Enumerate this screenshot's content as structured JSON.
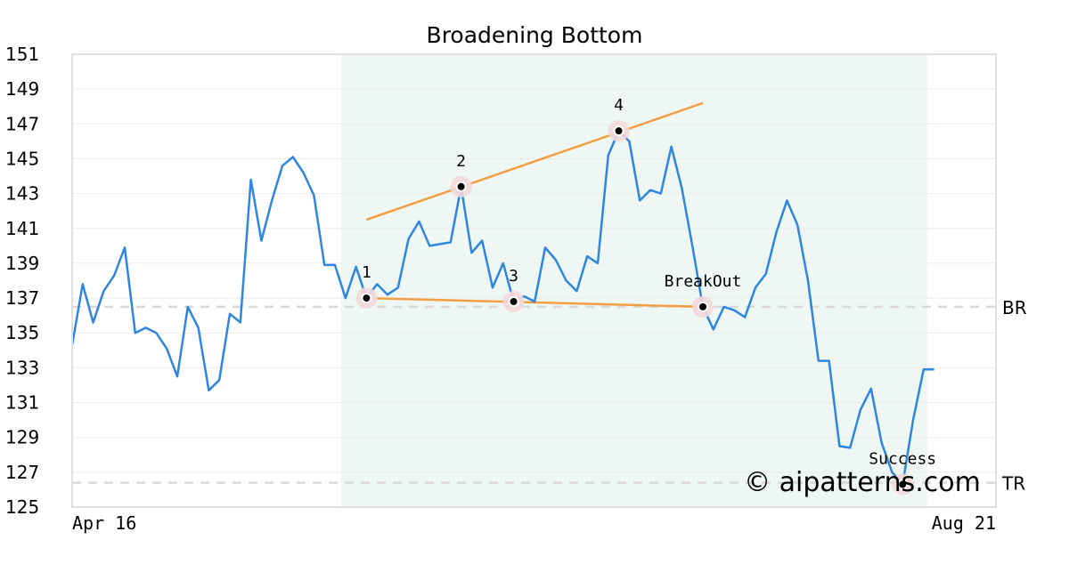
{
  "chart_data": {
    "type": "line",
    "title": "Broadening Bottom",
    "xlabel": "",
    "ylabel": "",
    "ylim": [
      125,
      151
    ],
    "yticks": [
      125,
      127,
      129,
      131,
      133,
      135,
      137,
      139,
      141,
      143,
      145,
      147,
      149,
      151
    ],
    "x_start_label": "Apr 16",
    "x_end_label": "Aug 21",
    "grid": "horizontal",
    "colors": {
      "price": "#2f86e0",
      "trendline": "#f59d42",
      "shade": "#eef7f3",
      "point_halo": "#f2d8dc",
      "reference": "#d9d9d9",
      "watermark": "#c9cdf4"
    },
    "series": [
      {
        "values": [
          134.3,
          137.8,
          135.6,
          137.4,
          138.3,
          139.9,
          135.0,
          135.3,
          135.0,
          134.1,
          132.5,
          136.5,
          135.3,
          131.7,
          132.3,
          136.1,
          135.6,
          143.8,
          140.3,
          142.6,
          144.6,
          145.1,
          144.2,
          142.9,
          138.9,
          138.9,
          137.0,
          138.8,
          137.0,
          137.8,
          137.2,
          137.6,
          140.4,
          141.4,
          140.0,
          140.1,
          140.2,
          143.4,
          139.6,
          140.3,
          137.6,
          139.0,
          136.8,
          137.1,
          136.8,
          139.9,
          139.2,
          138.0,
          137.4,
          139.4,
          139.0,
          145.2,
          146.6,
          146.0,
          142.6,
          143.2,
          143.0,
          145.7,
          143.3,
          140.0,
          136.5,
          135.2,
          136.5,
          136.3,
          135.9,
          137.6,
          138.4,
          140.8,
          142.6,
          141.2,
          138.0,
          133.4,
          133.4,
          128.5,
          128.4,
          130.6,
          131.8,
          128.7,
          127.0,
          126.3,
          130.0,
          132.9,
          132.9
        ]
      }
    ],
    "shaded_range": [
      26,
      81
    ],
    "pattern_points": [
      {
        "label": "1",
        "index": 28,
        "value": 137.0
      },
      {
        "label": "2",
        "index": 37,
        "value": 143.4
      },
      {
        "label": "3",
        "index": 42,
        "value": 136.8
      },
      {
        "label": "4",
        "index": 52,
        "value": 146.6
      },
      {
        "label": "BreakOut",
        "index": 60,
        "value": 136.5
      },
      {
        "label": "Success",
        "index": 79,
        "value": 126.3
      }
    ],
    "trendlines": [
      {
        "from": [
          28,
          141.5
        ],
        "to": [
          60,
          148.2
        ]
      },
      {
        "from": [
          28,
          137.0
        ],
        "to": [
          60,
          136.5
        ]
      }
    ],
    "reference_lines": [
      {
        "label": "BR",
        "value": 136.5
      },
      {
        "label": "TR",
        "value": 126.4
      }
    ],
    "watermark": "© aipatterns.com"
  }
}
